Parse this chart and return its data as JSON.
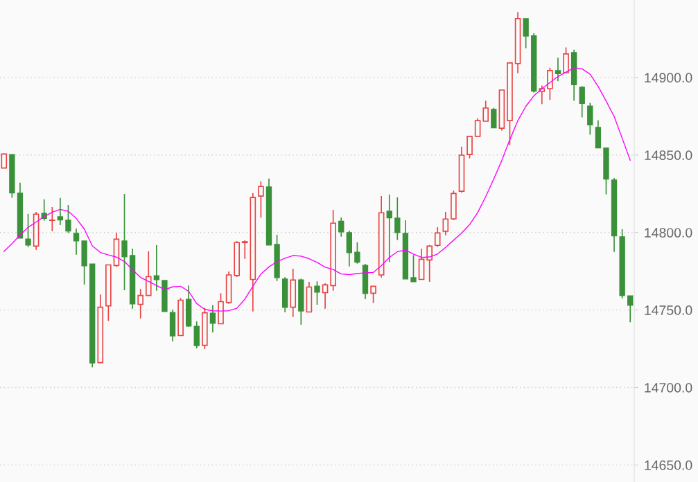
{
  "chart_data": {
    "type": "candlestick",
    "categories": [
      null,
      null,
      null,
      null,
      null,
      null,
      null,
      null,
      null,
      null,
      null,
      null,
      null,
      null,
      null,
      null,
      null,
      null,
      null,
      null,
      null,
      null,
      null,
      null,
      null,
      null,
      null,
      null,
      null,
      null,
      null,
      null,
      null,
      null,
      null,
      null,
      null,
      null,
      null,
      null,
      null,
      null,
      null,
      null,
      null,
      null,
      null,
      null,
      null,
      null,
      null,
      null,
      null,
      null,
      null,
      null,
      null,
      null,
      null,
      null,
      null,
      null,
      null,
      null,
      null,
      null,
      null,
      null,
      null,
      null,
      null,
      null,
      null,
      null,
      null,
      null,
      null,
      null,
      null
    ],
    "ohlc": [
      [
        14841.6,
        14851.0,
        14841.6,
        14850.6
      ],
      [
        14850.3,
        14850.3,
        14822.4,
        14825.5
      ],
      [
        14825.4,
        14832.1,
        14796.4,
        14796.4
      ],
      [
        14795.8,
        14812.0,
        14790.6,
        14791.9
      ],
      [
        14791.2,
        14813.3,
        14788.8,
        14811.8
      ],
      [
        14812.4,
        14821.4,
        14807.6,
        14809.1
      ],
      [
        14807.8,
        14816.4,
        14800.8,
        14808.0
      ],
      [
        14810.2,
        14822.3,
        14804.8,
        14808.1
      ],
      [
        14807.9,
        14817.7,
        14799.6,
        14800.9
      ],
      [
        14799.4,
        14802.5,
        14785.7,
        14794.6
      ],
      [
        14794.5,
        14794.5,
        14766.4,
        14778.5
      ],
      [
        14779.7,
        14779.7,
        14713.0,
        14715.8
      ],
      [
        14716.0,
        14760.0,
        14715.7,
        14751.8
      ],
      [
        14752.7,
        14779.1,
        14742.9,
        14779.1
      ],
      [
        14778.7,
        14799.9,
        14777.8,
        14795.7
      ],
      [
        14794.5,
        14824.9,
        14762.8,
        14784.3
      ],
      [
        14785.1,
        14789.6,
        14750.8,
        14753.9
      ],
      [
        14753.6,
        14763.6,
        14744.5,
        14759.4
      ],
      [
        14759.4,
        14787.8,
        14759.4,
        14771.5
      ],
      [
        14772.1,
        14791.8,
        14762.4,
        14769.6
      ],
      [
        14769.0,
        14769.0,
        14749.0,
        14749.0
      ],
      [
        14748.4,
        14750.2,
        14729.7,
        14733.3
      ],
      [
        14733.5,
        14757.7,
        14733.5,
        14756.3
      ],
      [
        14756.9,
        14765.8,
        14739.1,
        14739.6
      ],
      [
        14739.4,
        14742.6,
        14725.2,
        14727.0
      ],
      [
        14727.2,
        14751.4,
        14724.8,
        14748.2
      ],
      [
        14747.9,
        14753.2,
        14735.5,
        14741.4
      ],
      [
        14741.1,
        14760.8,
        14741.1,
        14755.4
      ],
      [
        14754.8,
        14774.8,
        14753.9,
        14772.6
      ],
      [
        14772.2,
        14794.5,
        14771.3,
        14793.5
      ],
      [
        14793.5,
        14794.9,
        14783.0,
        14794.0
      ],
      [
        14769.7,
        14825.4,
        14749.0,
        14822.6
      ],
      [
        14823.5,
        14832.9,
        14809.6,
        14829.7
      ],
      [
        14829.4,
        14834.8,
        14791.9,
        14791.9
      ],
      [
        14792.3,
        14798.5,
        14768.7,
        14770.9
      ],
      [
        14769.9,
        14771.2,
        14748.5,
        14751.7
      ],
      [
        14751.8,
        14776.6,
        14745.4,
        14769.3
      ],
      [
        14769.4,
        14770.2,
        14740.5,
        14749.4
      ],
      [
        14748.7,
        14768.1,
        14748.7,
        14764.8
      ],
      [
        14765.4,
        14768.5,
        14753.4,
        14761.5
      ],
      [
        14761.2,
        14767.2,
        14750.8,
        14766.2
      ],
      [
        14765.7,
        14814.6,
        14762.4,
        14806.0
      ],
      [
        14807.3,
        14809.7,
        14797.3,
        14800.4
      ],
      [
        14799.9,
        14801.2,
        14778.1,
        14787.0
      ],
      [
        14787.3,
        14793.6,
        14779.9,
        14780.8
      ],
      [
        14778.8,
        14779.7,
        14757.0,
        14760.6
      ],
      [
        14760.8,
        14765.3,
        14754.5,
        14765.3
      ],
      [
        14772.6,
        14823.5,
        14770.9,
        14812.7
      ],
      [
        14813.7,
        14824.5,
        14780.9,
        14809.4
      ],
      [
        14809.3,
        14822.7,
        14795.1,
        14800.0
      ],
      [
        14799.4,
        14807.9,
        14770.0,
        14770.0
      ],
      [
        14770.8,
        14785.4,
        14768.2,
        14768.2
      ],
      [
        14769.7,
        14789.6,
        14769.7,
        14782.7
      ],
      [
        14782.3,
        14791.9,
        14768.2,
        14791.2
      ],
      [
        14791.7,
        14803.4,
        14790.6,
        14799.7
      ],
      [
        14800.8,
        14813.3,
        14798.2,
        14808.7
      ],
      [
        14808.8,
        14827.0,
        14807.9,
        14825.2
      ],
      [
        14826.6,
        14855.4,
        14825.7,
        14849.9
      ],
      [
        14850.3,
        14862.0,
        14847.9,
        14862.0
      ],
      [
        14862.0,
        14873.7,
        14862.0,
        14872.2
      ],
      [
        14871.8,
        14885.0,
        14871.8,
        14880.3
      ],
      [
        14879.4,
        14880.4,
        14867.5,
        14867.5
      ],
      [
        14867.3,
        14891.9,
        14865.8,
        14891.9
      ],
      [
        14872.2,
        14909.4,
        14856.3,
        14909.4
      ],
      [
        14909.0,
        14942.2,
        14902.8,
        14938.0
      ],
      [
        14938.0,
        14938.0,
        14918.9,
        14926.7
      ],
      [
        14926.9,
        14928.6,
        14890.3,
        14891.2
      ],
      [
        14891.0,
        14894.8,
        14882.8,
        14892.8
      ],
      [
        14892.8,
        14906.3,
        14885.5,
        14904.5
      ],
      [
        14904.5,
        14912.7,
        14897.6,
        14902.5
      ],
      [
        14903.1,
        14919.4,
        14903.1,
        14915.2
      ],
      [
        14916.1,
        14917.9,
        14885.0,
        14895.3
      ],
      [
        14893.7,
        14894.4,
        14874.3,
        14883.3
      ],
      [
        14881.6,
        14883.6,
        14863.1,
        14869.4
      ],
      [
        14867.8,
        14872.4,
        14854.6,
        14854.6
      ],
      [
        14854.5,
        14854.5,
        14824.6,
        14834.5
      ],
      [
        14833.9,
        14835.2,
        14787.5,
        14797.8
      ],
      [
        14797.2,
        14802.1,
        14757.5,
        14759.3
      ],
      [
        14759.1,
        14759.1,
        14742.1,
        14753.0
      ]
    ],
    "series": [
      {
        "type": "line",
        "color": "#ff00ff",
        "values": [
          14787.8,
          14792.8,
          14798.3,
          14803.3,
          14806.8,
          14810.2,
          14813.1,
          14814.9,
          14813.7,
          14809.1,
          14802.2,
          14791.4,
          14787.1,
          14785.5,
          14784.1,
          14781.3,
          14776.0,
          14771.0,
          14768.4,
          14765.8,
          14763.1,
          14764.9,
          14765.3,
          14762.0,
          14754.1,
          14750.4,
          14749.5,
          14749.3,
          14749.5,
          14751.1,
          14757.0,
          14765.3,
          14773.2,
          14777.8,
          14781.2,
          14783.4,
          14785.1,
          14784.7,
          14783.1,
          14780.7,
          14777.6,
          14776.1,
          14773.2,
          14772.8,
          14773.5,
          14774.0,
          14774.2,
          14778.6,
          14783.9,
          14787.6,
          14788.6,
          14786.1,
          14783.9,
          14784.2,
          14786.1,
          14790.4,
          14795.0,
          14799.6,
          14805.1,
          14812.9,
          14823.1,
          14834.5,
          14846.4,
          14859.8,
          14872.1,
          14881.4,
          14888.2,
          14892.7,
          14896.7,
          14900.6,
          14903.5,
          14906.3,
          14905.6,
          14902.1,
          14894.3,
          14884.8,
          14874.8,
          14860.8,
          14846.6
        ]
      }
    ],
    "colors": [
      "#e84444",
      "#3a913a",
      "#3a913a",
      "#3a913a",
      "#e84444",
      "#3a913a",
      "#e84444",
      "#3a913a",
      "#3a913a",
      "#3a913a",
      "#3a913a",
      "#3a913a",
      "#e84444",
      "#e84444",
      "#e84444",
      "#3a913a",
      "#3a913a",
      "#e84444",
      "#e84444",
      "#3a913a",
      "#3a913a",
      "#3a913a",
      "#e84444",
      "#3a913a",
      "#3a913a",
      "#e84444",
      "#3a913a",
      "#e84444",
      "#e84444",
      "#e84444",
      "#e84444",
      "#e84444",
      "#e84444",
      "#3a913a",
      "#3a913a",
      "#3a913a",
      "#e84444",
      "#3a913a",
      "#e84444",
      "#3a913a",
      "#e84444",
      "#e84444",
      "#3a913a",
      "#3a913a",
      "#3a913a",
      "#3a913a",
      "#e84444",
      "#e84444",
      "#3a913a",
      "#3a913a",
      "#3a913a",
      "#3a913a",
      "#e84444",
      "#e84444",
      "#e84444",
      "#e84444",
      "#e84444",
      "#e84444",
      "#e84444",
      "#e84444",
      "#e84444",
      "#3a913a",
      "#e84444",
      "#e84444",
      "#e84444",
      "#3a913a",
      "#3a913a",
      "#e84444",
      "#e84444",
      "#3a913a",
      "#e84444",
      "#3a913a",
      "#3a913a",
      "#3a913a",
      "#3a913a",
      "#3a913a",
      "#3a913a",
      "#3a913a",
      "#3a913a"
    ],
    "ylim": [
      14639,
      14950
    ],
    "yticks": [
      {
        "value": 14650,
        "label": "14650.0"
      },
      {
        "value": 14700,
        "label": "14700.0"
      },
      {
        "value": 14750,
        "label": "14750.0"
      },
      {
        "value": 14800,
        "label": "14800.0"
      },
      {
        "value": 14850,
        "label": "14850.0"
      },
      {
        "value": 14900,
        "label": "14900.0"
      }
    ],
    "grid": "y",
    "tick_labels": "y",
    "legend": false
  }
}
